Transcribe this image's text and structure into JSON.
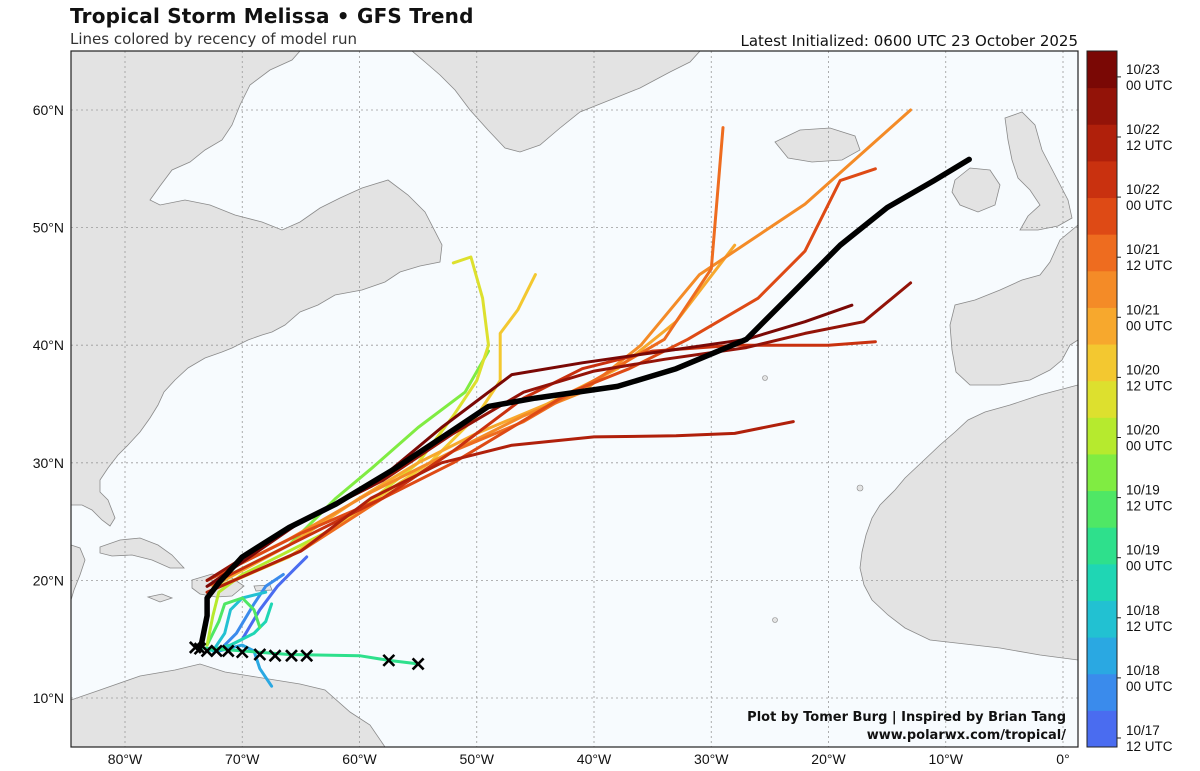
{
  "header": {
    "title": "Tropical Storm Melissa • GFS Trend",
    "subtitle": "Lines colored by recency of model run",
    "initialized": "Latest Initialized: 0600 UTC 23 October 2025"
  },
  "credits": {
    "line1": "Plot by Tomer Burg | Inspired by Brian Tang",
    "line2": "www.polarwx.com/tropical/"
  },
  "colors": {
    "ocean": "#f7fbfe",
    "land": "#e3e3e3",
    "land_border": "#8a8a8a",
    "grid": "#9a9a9a",
    "latest_track": "#000000",
    "storm_position_marker": "#000000"
  },
  "chart_data": {
    "type": "map",
    "projection": "equirectangular",
    "extent": {
      "lon": [
        -84,
        0
      ],
      "lat": [
        5,
        65
      ]
    },
    "grid": true,
    "lon_ticks": [
      {
        "value": -80,
        "label": "80°W"
      },
      {
        "value": -70,
        "label": "70°W"
      },
      {
        "value": -60,
        "label": "60°W"
      },
      {
        "value": -50,
        "label": "50°W"
      },
      {
        "value": -40,
        "label": "40°W"
      },
      {
        "value": -30,
        "label": "30°W"
      },
      {
        "value": -20,
        "label": "20°W"
      },
      {
        "value": -10,
        "label": "10°W"
      },
      {
        "value": 0,
        "label": "0°"
      }
    ],
    "lat_ticks": [
      {
        "value": 10,
        "label": "10°N"
      },
      {
        "value": 20,
        "label": "20°N"
      },
      {
        "value": 30,
        "label": "30°N"
      },
      {
        "value": 40,
        "label": "40°N"
      },
      {
        "value": 50,
        "label": "50°N"
      },
      {
        "value": 60,
        "label": "60°N"
      }
    ],
    "colorbar": {
      "colors": [
        "#4a6cf0",
        "#3a8bec",
        "#2aa8e2",
        "#22c1d2",
        "#1fd6b4",
        "#2ee08c",
        "#4fe765",
        "#80ec42",
        "#b6ea2e",
        "#dde02e",
        "#f3c830",
        "#f7a82d",
        "#f48b27",
        "#ee6c1f",
        "#de4a15",
        "#c9310f",
        "#b0200b",
        "#931308",
        "#7a0805"
      ],
      "labels": [
        {
          "text": "10/17\n12 UTC",
          "pos": 0.02
        },
        {
          "text": "10/18\n00 UTC",
          "pos": 0.125
        },
        {
          "text": "10/18\n12 UTC",
          "pos": 0.23
        },
        {
          "text": "10/19\n00 UTC",
          "pos": 0.335
        },
        {
          "text": "10/19\n12 UTC",
          "pos": 0.44
        },
        {
          "text": "10/20\n00 UTC",
          "pos": 0.545
        },
        {
          "text": "10/20\n12 UTC",
          "pos": 0.65
        },
        {
          "text": "10/21\n00 UTC",
          "pos": 0.755
        },
        {
          "text": "10/21\n12 UTC",
          "pos": 0.86
        },
        {
          "text": "10/22\n00 UTC",
          "pos": 0.965
        },
        {
          "text": "10/22\n12 UTC",
          "pos": 1.07
        },
        {
          "text": "10/23\n00 UTC",
          "pos": 1.175
        }
      ]
    },
    "storm_positions": [
      [
        -55.0,
        12.9
      ],
      [
        -57.5,
        13.2
      ],
      [
        -64.5,
        13.6
      ],
      [
        -65.8,
        13.6
      ],
      [
        -67.2,
        13.6
      ],
      [
        -68.5,
        13.7
      ],
      [
        -70.0,
        13.9
      ],
      [
        -71.2,
        14.0
      ],
      [
        -72.2,
        14.0
      ],
      [
        -73.0,
        14.0
      ],
      [
        -73.6,
        14.2
      ],
      [
        -74.0,
        14.3
      ]
    ],
    "tracks": [
      {
        "color": "#4a6cf0",
        "points": [
          [
            -72,
            14
          ],
          [
            -70,
            15
          ],
          [
            -68.5,
            17.5
          ],
          [
            -67,
            19.5
          ],
          [
            -65.5,
            21
          ],
          [
            -64.5,
            22
          ]
        ]
      },
      {
        "color": "#3a8bec",
        "points": [
          [
            -72,
            14
          ],
          [
            -70.5,
            15.5
          ],
          [
            -69,
            18
          ],
          [
            -68,
            19.5
          ],
          [
            -66.5,
            20.5
          ]
        ]
      },
      {
        "color": "#2aa8e2",
        "points": [
          [
            -72,
            14
          ],
          [
            -70,
            14.5
          ],
          [
            -69,
            14
          ],
          [
            -68.5,
            12.5
          ],
          [
            -67.5,
            11
          ]
        ]
      },
      {
        "color": "#22c1d2",
        "points": [
          [
            -72.5,
            14
          ],
          [
            -71.5,
            15.5
          ],
          [
            -71,
            17.5
          ],
          [
            -70,
            18.5
          ],
          [
            -68,
            19
          ]
        ]
      },
      {
        "color": "#1fd6b4",
        "points": [
          [
            -73,
            14
          ],
          [
            -71,
            14.5
          ],
          [
            -69,
            15.5
          ],
          [
            -68,
            16.5
          ],
          [
            -67.5,
            18
          ]
        ]
      },
      {
        "color": "#2ee08c",
        "points": [
          [
            -74,
            14.3
          ],
          [
            -66,
            13.7
          ],
          [
            -60,
            13.6
          ],
          [
            -57.5,
            13.2
          ],
          [
            -55,
            12.9
          ]
        ]
      },
      {
        "color": "#4fe765",
        "points": [
          [
            -73,
            14.5
          ],
          [
            -72,
            16.5
          ],
          [
            -71.5,
            18
          ],
          [
            -70,
            18.5
          ],
          [
            -69,
            17.5
          ],
          [
            -68.5,
            16
          ]
        ]
      },
      {
        "color": "#80ec42",
        "points": [
          [
            -72,
            20
          ],
          [
            -66,
            23
          ],
          [
            -62,
            27
          ],
          [
            -59,
            29.5
          ],
          [
            -55,
            33
          ],
          [
            -51,
            36
          ],
          [
            -49,
            39.5
          ]
        ]
      },
      {
        "color": "#b6ea2e",
        "points": [
          [
            -73,
            14.5
          ],
          [
            -72.5,
            17
          ],
          [
            -72,
            19
          ],
          [
            -70,
            20.5
          ],
          [
            -68,
            21.5
          ],
          [
            -63,
            24
          ]
        ]
      },
      {
        "color": "#dde02e",
        "points": [
          [
            -72,
            19.5
          ],
          [
            -66,
            22
          ],
          [
            -60,
            26
          ],
          [
            -55,
            30
          ],
          [
            -52,
            34
          ],
          [
            -50,
            37
          ],
          [
            -49,
            40
          ],
          [
            -49.5,
            44
          ],
          [
            -50.5,
            47.5
          ],
          [
            -52,
            47
          ]
        ]
      },
      {
        "color": "#f3c830",
        "points": [
          [
            -73,
            19
          ],
          [
            -66,
            22
          ],
          [
            -60,
            26
          ],
          [
            -54,
            30
          ],
          [
            -50,
            34
          ],
          [
            -48,
            37
          ],
          [
            -48,
            41
          ],
          [
            -46.5,
            43
          ],
          [
            -45,
            46
          ]
        ]
      },
      {
        "color": "#f7a82d",
        "points": [
          [
            -72.5,
            19.5
          ],
          [
            -66,
            23
          ],
          [
            -60,
            27
          ],
          [
            -55,
            30
          ],
          [
            -50,
            32.5
          ],
          [
            -44,
            35
          ],
          [
            -38,
            38
          ],
          [
            -33,
            42
          ],
          [
            -28,
            48.5
          ]
        ]
      },
      {
        "color": "#f48b27",
        "points": [
          [
            -73,
            20
          ],
          [
            -66,
            23.5
          ],
          [
            -59,
            27.5
          ],
          [
            -52,
            31
          ],
          [
            -46,
            34
          ],
          [
            -41,
            36
          ],
          [
            -36,
            40
          ],
          [
            -31,
            46
          ],
          [
            -22,
            52
          ],
          [
            -13,
            60
          ]
        ]
      },
      {
        "color": "#ee6c1f",
        "points": [
          [
            -73,
            19
          ],
          [
            -65,
            22.5
          ],
          [
            -58,
            27
          ],
          [
            -52,
            31
          ],
          [
            -46,
            33.5
          ],
          [
            -40,
            37
          ],
          [
            -34,
            40.5
          ],
          [
            -30,
            46.5
          ],
          [
            -29,
            58.5
          ]
        ]
      },
      {
        "color": "#de4a15",
        "points": [
          [
            -73,
            20
          ],
          [
            -65,
            24
          ],
          [
            -58,
            27
          ],
          [
            -52,
            30
          ],
          [
            -47,
            33
          ],
          [
            -42,
            36
          ],
          [
            -37,
            38
          ],
          [
            -32,
            40.5
          ],
          [
            -26,
            44
          ],
          [
            -22,
            48
          ],
          [
            -19,
            54
          ],
          [
            -16,
            55
          ]
        ]
      },
      {
        "color": "#c9310f",
        "points": [
          [
            -73,
            19.5
          ],
          [
            -65,
            23.5
          ],
          [
            -58,
            27
          ],
          [
            -52,
            31
          ],
          [
            -46,
            35.5
          ],
          [
            -41,
            38
          ],
          [
            -35,
            39.5
          ],
          [
            -28,
            40
          ],
          [
            -20,
            40
          ],
          [
            -16,
            40.3
          ]
        ]
      },
      {
        "color": "#b0200b",
        "points": [
          [
            -73,
            19
          ],
          [
            -65,
            22.5
          ],
          [
            -59,
            27
          ],
          [
            -53,
            30
          ],
          [
            -47,
            31.5
          ],
          [
            -40,
            32.2
          ],
          [
            -33,
            32.3
          ],
          [
            -28,
            32.5
          ],
          [
            -23,
            33.5
          ]
        ]
      },
      {
        "color": "#931308",
        "points": [
          [
            -73,
            20
          ],
          [
            -65,
            25
          ],
          [
            -58,
            28.5
          ],
          [
            -52,
            32.5
          ],
          [
            -46,
            36
          ],
          [
            -40,
            37.8
          ],
          [
            -34,
            38.8
          ],
          [
            -27,
            39.8
          ],
          [
            -22,
            41
          ],
          [
            -17,
            42
          ],
          [
            -13,
            45.3
          ]
        ]
      },
      {
        "color": "#7a0805",
        "points": [
          [
            -73,
            19.5
          ],
          [
            -65,
            25
          ],
          [
            -59,
            28
          ],
          [
            -53,
            33
          ],
          [
            -47,
            37.5
          ],
          [
            -41,
            38.5
          ],
          [
            -34,
            39.5
          ],
          [
            -27,
            40.5
          ],
          [
            -22,
            42
          ],
          [
            -18,
            43.4
          ]
        ]
      },
      {
        "color": "#000000",
        "latest": true,
        "points": [
          [
            -73.5,
            14.5
          ],
          [
            -73,
            17
          ],
          [
            -73,
            18.5
          ],
          [
            -72,
            19.8
          ],
          [
            -70,
            22
          ],
          [
            -66,
            24.5
          ],
          [
            -62,
            26.5
          ],
          [
            -57,
            29.5
          ],
          [
            -52,
            32.8
          ],
          [
            -49,
            34.8
          ],
          [
            -45,
            35.5
          ],
          [
            -38,
            36.5
          ],
          [
            -33,
            38
          ],
          [
            -27,
            40.5
          ],
          [
            -23,
            44.5
          ],
          [
            -19,
            48.5
          ],
          [
            -15,
            51.7
          ],
          [
            -11,
            54
          ],
          [
            -8,
            55.8
          ]
        ]
      }
    ]
  }
}
